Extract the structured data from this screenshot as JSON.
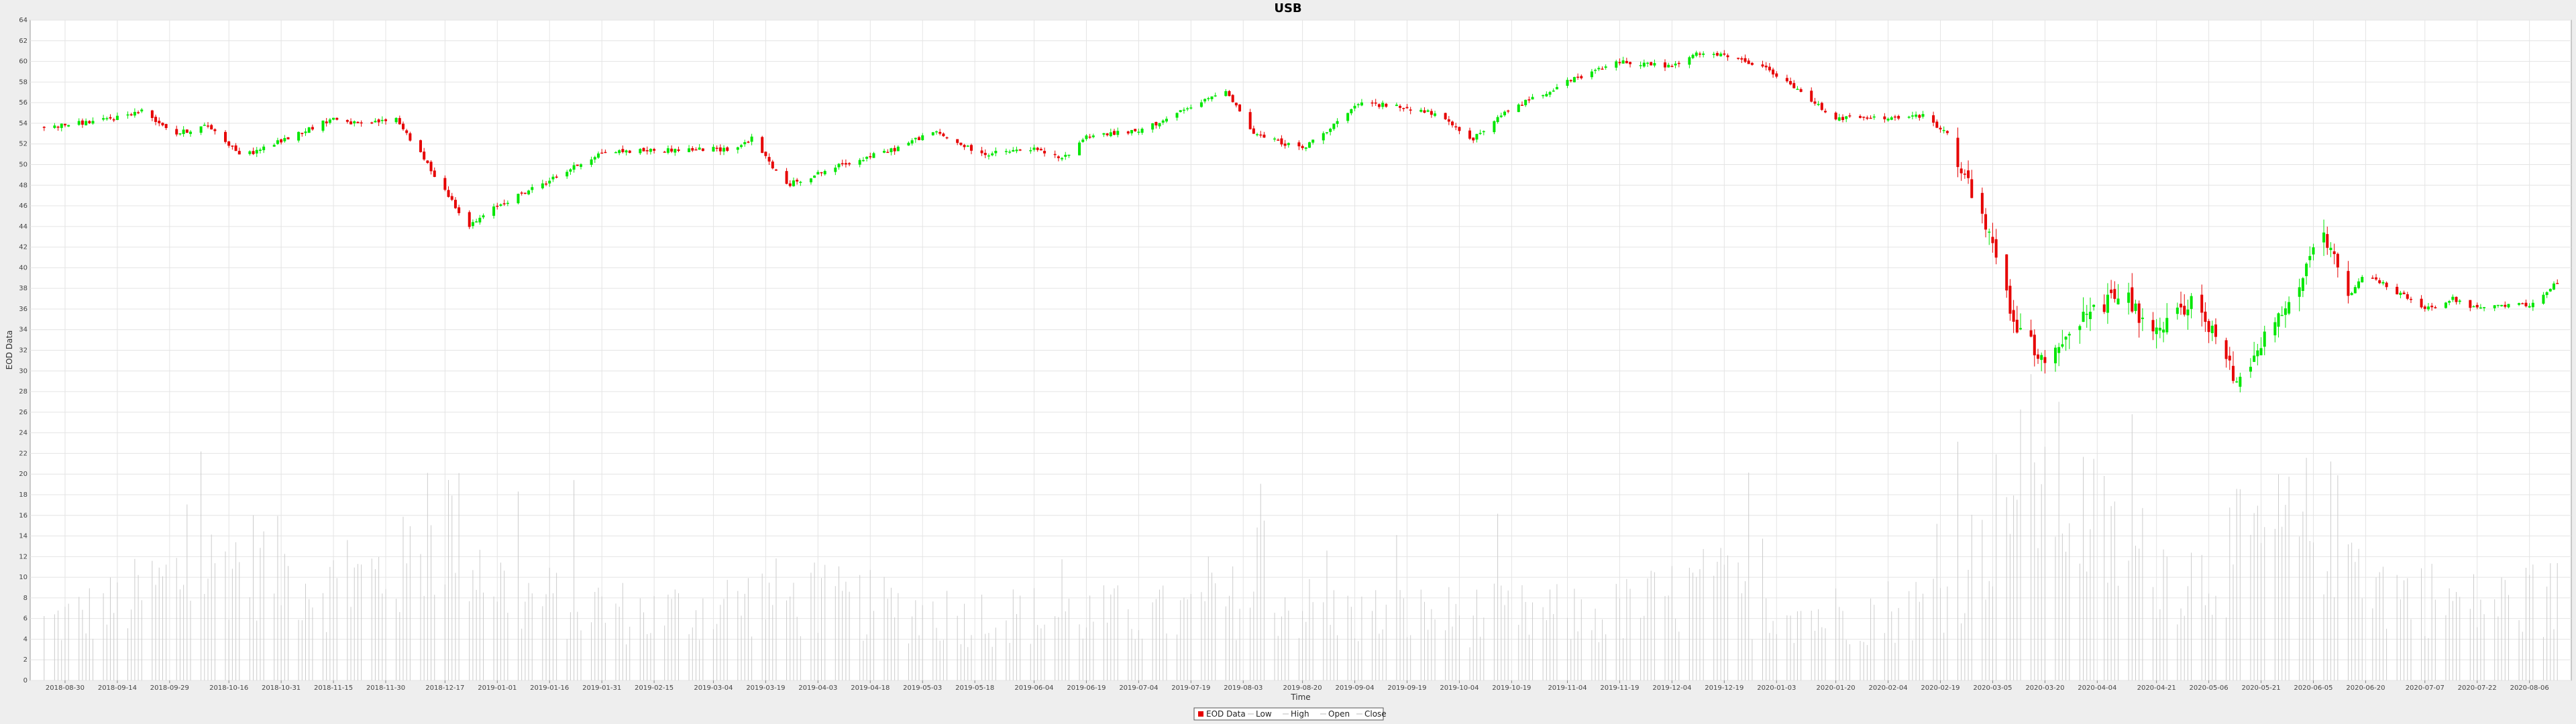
{
  "chart_data": {
    "type": "candlestick",
    "title": "USB",
    "xlabel": "Time",
    "ylabel": "EOD Data",
    "ylim": [
      0,
      64
    ],
    "y_ticks": [
      0,
      2,
      4,
      6,
      8,
      10,
      12,
      14,
      16,
      18,
      20,
      22,
      24,
      26,
      28,
      30,
      32,
      34,
      36,
      38,
      40,
      42,
      44,
      46,
      48,
      50,
      52,
      54,
      56,
      58,
      60,
      62,
      64
    ],
    "x_tick_labels": [
      "2018-08-30",
      "2018-09-14",
      "2018-09-29",
      "2018-10-16",
      "2018-10-31",
      "2018-11-15",
      "2018-11-30",
      "2018-12-17",
      "2019-01-01",
      "2019-01-16",
      "2019-01-31",
      "2019-02-15",
      "2019-03-04",
      "2019-03-19",
      "2019-04-03",
      "2019-04-18",
      "2019-05-03",
      "2019-05-18",
      "2019-06-04",
      "2019-06-19",
      "2019-07-04",
      "2019-07-19",
      "2019-08-03",
      "2019-08-20",
      "2019-09-04",
      "2019-09-19",
      "2019-10-04",
      "2019-10-19",
      "2019-11-04",
      "2019-11-19",
      "2019-12-04",
      "2019-12-19",
      "2020-01-03",
      "2020-01-20",
      "2020-02-04",
      "2020-02-19",
      "2020-03-05",
      "2020-03-20",
      "2020-04-04",
      "2020-04-21",
      "2020-05-06",
      "2020-05-21",
      "2020-06-05",
      "2020-06-20",
      "2020-07-07",
      "2020-07-22",
      "2020-08-06"
    ],
    "grid": true,
    "legend_position": "bottom-center",
    "legend": [
      "EOD Data",
      "Low",
      "High",
      "Open",
      "Close"
    ],
    "price_anchors": [
      [
        "2018-08-24",
        53.6
      ],
      [
        "2018-09-10",
        54.3
      ],
      [
        "2018-09-21",
        55.2
      ],
      [
        "2018-10-01",
        53.0
      ],
      [
        "2018-10-10",
        53.8
      ],
      [
        "2018-10-20",
        50.8
      ],
      [
        "2018-10-31",
        52.3
      ],
      [
        "2018-11-15",
        54.5
      ],
      [
        "2018-11-23",
        53.8
      ],
      [
        "2018-12-03",
        54.5
      ],
      [
        "2018-12-10",
        51.0
      ],
      [
        "2018-12-24",
        44.0
      ],
      [
        "2019-01-01",
        46.0
      ],
      [
        "2019-01-16",
        48.5
      ],
      [
        "2019-01-31",
        51.2
      ],
      [
        "2019-02-15",
        51.4
      ],
      [
        "2019-03-04",
        51.5
      ],
      [
        "2019-03-10",
        51.5
      ],
      [
        "2019-03-15",
        52.5
      ],
      [
        "2019-03-25",
        48.0
      ],
      [
        "2019-04-10",
        50.0
      ],
      [
        "2019-04-25",
        51.5
      ],
      [
        "2019-05-06",
        53.2
      ],
      [
        "2019-05-20",
        51.0
      ],
      [
        "2019-06-04",
        51.5
      ],
      [
        "2019-06-12",
        50.5
      ],
      [
        "2019-06-19",
        52.8
      ],
      [
        "2019-07-04",
        53.2
      ],
      [
        "2019-07-22",
        56.0
      ],
      [
        "2019-07-29",
        57.3
      ],
      [
        "2019-08-06",
        53.0
      ],
      [
        "2019-08-20",
        51.5
      ],
      [
        "2019-09-06",
        56.0
      ],
      [
        "2019-09-19",
        55.5
      ],
      [
        "2019-09-26",
        55.0
      ],
      [
        "2019-10-08",
        52.5
      ],
      [
        "2019-10-19",
        55.5
      ],
      [
        "2019-11-04",
        58.0
      ],
      [
        "2019-11-19",
        60.0
      ],
      [
        "2019-12-04",
        59.5
      ],
      [
        "2019-12-12",
        60.8
      ],
      [
        "2019-12-19",
        60.5
      ],
      [
        "2019-12-30",
        59.5
      ],
      [
        "2020-01-10",
        57.0
      ],
      [
        "2020-01-20",
        54.5
      ],
      [
        "2020-02-04",
        54.5
      ],
      [
        "2020-02-14",
        54.7
      ],
      [
        "2020-02-21",
        53.0
      ],
      [
        "2020-02-28",
        47.0
      ],
      [
        "2020-03-05",
        42.0
      ],
      [
        "2020-03-12",
        34.0
      ],
      [
        "2020-03-20",
        31.0
      ],
      [
        "2020-03-27",
        34.0
      ],
      [
        "2020-04-04",
        36.0
      ],
      [
        "2020-04-12",
        37.5
      ],
      [
        "2020-04-20",
        33.0
      ],
      [
        "2020-05-01",
        37.0
      ],
      [
        "2020-05-10",
        32.0
      ],
      [
        "2020-05-14",
        29.0
      ],
      [
        "2020-05-21",
        33.0
      ],
      [
        "2020-05-28",
        36.0
      ],
      [
        "2020-06-08",
        43.0
      ],
      [
        "2020-06-15",
        37.0
      ],
      [
        "2020-06-20",
        39.5
      ],
      [
        "2020-07-07",
        36.0
      ],
      [
        "2020-07-15",
        37.0
      ],
      [
        "2020-07-22",
        36.0
      ],
      [
        "2020-08-06",
        36.5
      ],
      [
        "2020-08-14",
        38.5
      ]
    ],
    "volume_anchors": [
      [
        "2018-08-24",
        6
      ],
      [
        "2018-09-14",
        8
      ],
      [
        "2018-10-01",
        11
      ],
      [
        "2018-10-20",
        13
      ],
      [
        "2018-11-15",
        10
      ],
      [
        "2018-12-05",
        12
      ],
      [
        "2018-12-18",
        17
      ],
      [
        "2019-01-05",
        9
      ],
      [
        "2019-02-15",
        7
      ],
      [
        "2019-03-20",
        9
      ],
      [
        "2019-05-15",
        7
      ],
      [
        "2019-07-15",
        7
      ],
      [
        "2019-08-05",
        9
      ],
      [
        "2019-09-01",
        7
      ],
      [
        "2019-10-10",
        7
      ],
      [
        "2019-11-15",
        7
      ],
      [
        "2019-12-15",
        10
      ],
      [
        "2020-01-15",
        7
      ],
      [
        "2020-02-15",
        8
      ],
      [
        "2020-03-01",
        14
      ],
      [
        "2020-03-15",
        23
      ],
      [
        "2020-03-25",
        20
      ],
      [
        "2020-04-10",
        14
      ],
      [
        "2020-05-01",
        11
      ],
      [
        "2020-05-15",
        14
      ],
      [
        "2020-06-08",
        17
      ],
      [
        "2020-06-25",
        10
      ],
      [
        "2020-07-20",
        8
      ],
      [
        "2020-08-14",
        9
      ]
    ]
  },
  "colors": {
    "up": "#00e600",
    "down": "#e60000",
    "volume": "#cccccc",
    "grid": "#e4e4e4",
    "plot_bg": "#ffffff",
    "frame_bg": "#eeeeee"
  }
}
